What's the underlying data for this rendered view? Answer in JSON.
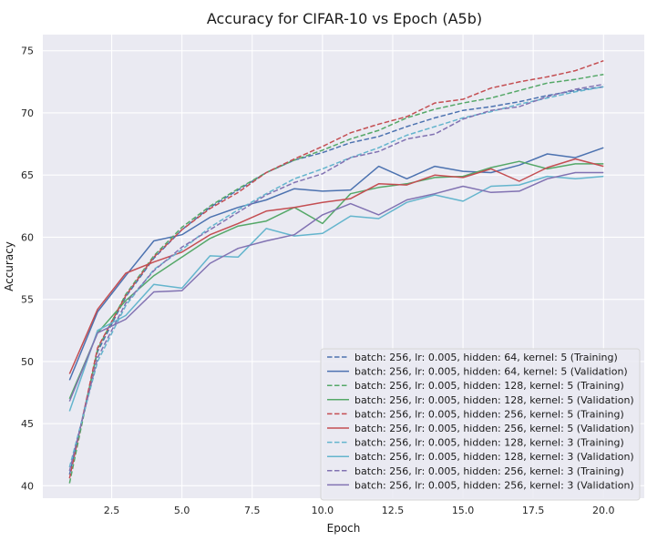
{
  "chart_data": {
    "type": "line",
    "title": "Accuracy for CIFAR-10 vs Epoch (A5b)",
    "xlabel": "Epoch",
    "ylabel": "Accuracy",
    "xlim": [
      0.05,
      21.45
    ],
    "ylim": [
      39.0,
      76.3
    ],
    "xticks": [
      2.5,
      5.0,
      7.5,
      10.0,
      12.5,
      15.0,
      17.5,
      20.0
    ],
    "xtick_labels": [
      "2.5",
      "5.0",
      "7.5",
      "10.0",
      "12.5",
      "15.0",
      "17.5",
      "20.0"
    ],
    "yticks": [
      40,
      45,
      50,
      55,
      60,
      65,
      70,
      75
    ],
    "ytick_labels": [
      "40",
      "45",
      "50",
      "55",
      "60",
      "65",
      "70",
      "75"
    ],
    "grid": true,
    "legend_position": "lower-right",
    "background": "#eaeaf2",
    "x": [
      1,
      2,
      3,
      4,
      5,
      6,
      7,
      8,
      9,
      10,
      11,
      12,
      13,
      14,
      15,
      16,
      17,
      18,
      19,
      20
    ],
    "series": [
      {
        "name": "batch: 256, lr: 0.005, hidden: 64, kernel: 5 (Training)",
        "color": "#4c72b0",
        "style": "dashed",
        "values": [
          40.9,
          50.8,
          55.2,
          58.3,
          60.6,
          62.4,
          63.8,
          65.2,
          66.2,
          66.8,
          67.6,
          68.1,
          68.9,
          69.6,
          70.2,
          70.5,
          70.9,
          71.4,
          71.8,
          72.1
        ]
      },
      {
        "name": "batch: 256, lr: 0.005, hidden: 64, kernel: 5 (Validation)",
        "color": "#4c72b0",
        "style": "solid",
        "values": [
          48.5,
          54.0,
          56.9,
          59.7,
          60.2,
          61.6,
          62.4,
          63.0,
          63.9,
          63.7,
          63.8,
          65.7,
          64.7,
          65.7,
          65.3,
          65.2,
          65.8,
          66.7,
          66.4,
          67.2
        ]
      },
      {
        "name": "batch: 256, lr: 0.005, hidden: 128, kernel: 5 (Training)",
        "color": "#55a868",
        "style": "dashed",
        "values": [
          40.2,
          51.0,
          55.4,
          58.5,
          60.8,
          62.5,
          63.9,
          65.2,
          66.2,
          67.0,
          67.9,
          68.6,
          69.6,
          70.3,
          70.8,
          71.2,
          71.8,
          72.4,
          72.7,
          73.1
        ]
      },
      {
        "name": "batch: 256, lr: 0.005, hidden: 128, kernel: 5 (Validation)",
        "color": "#55a868",
        "style": "solid",
        "values": [
          47.0,
          52.3,
          54.9,
          56.9,
          58.4,
          59.9,
          60.9,
          61.3,
          62.4,
          61.1,
          63.5,
          64.0,
          64.3,
          64.8,
          64.9,
          65.6,
          66.1,
          65.5,
          65.9,
          65.9
        ]
      },
      {
        "name": "batch: 256, lr: 0.005, hidden: 256, kernel: 5 (Training)",
        "color": "#c44e52",
        "style": "dashed",
        "values": [
          40.6,
          51.1,
          55.3,
          58.4,
          60.6,
          62.3,
          63.6,
          65.2,
          66.3,
          67.3,
          68.4,
          69.1,
          69.7,
          70.8,
          71.1,
          72.0,
          72.5,
          72.9,
          73.4,
          74.2
        ]
      },
      {
        "name": "batch: 256, lr: 0.005, hidden: 256, kernel: 5 (Validation)",
        "color": "#c44e52",
        "style": "solid",
        "values": [
          49.0,
          54.2,
          57.1,
          58.0,
          58.8,
          60.2,
          61.1,
          62.1,
          62.4,
          62.8,
          63.1,
          64.3,
          64.2,
          65.0,
          64.8,
          65.5,
          64.5,
          65.6,
          66.3,
          65.7
        ]
      },
      {
        "name": "batch: 256, lr: 0.005, hidden: 128, kernel: 3 (Training)",
        "color": "#64b5cd",
        "style": "dashed",
        "values": [
          41.5,
          50.0,
          54.5,
          57.4,
          59.0,
          60.8,
          62.2,
          63.5,
          64.7,
          65.5,
          66.4,
          67.2,
          68.2,
          68.9,
          69.6,
          70.1,
          70.7,
          71.2,
          71.7,
          72.1
        ]
      },
      {
        "name": "batch: 256, lr: 0.005, hidden: 128, kernel: 3 (Validation)",
        "color": "#64b5cd",
        "style": "solid",
        "values": [
          46.0,
          52.5,
          53.7,
          56.2,
          55.9,
          58.5,
          58.4,
          60.7,
          60.1,
          60.3,
          61.7,
          61.5,
          62.8,
          63.4,
          62.9,
          64.1,
          64.2,
          64.9,
          64.7,
          64.9
        ]
      },
      {
        "name": "batch: 256, lr: 0.005, hidden: 256, kernel: 3 (Training)",
        "color": "#8172b2",
        "style": "dashed",
        "values": [
          41.2,
          50.3,
          54.7,
          57.3,
          59.2,
          60.6,
          62.0,
          63.4,
          64.4,
          65.1,
          66.4,
          66.9,
          67.9,
          68.3,
          69.5,
          70.2,
          70.5,
          71.3,
          71.9,
          72.3
        ]
      },
      {
        "name": "batch: 256, lr: 0.005, hidden: 256, kernel: 3 (Validation)",
        "color": "#8172b2",
        "style": "solid",
        "values": [
          46.8,
          52.3,
          53.4,
          55.6,
          55.7,
          57.9,
          59.1,
          59.7,
          60.2,
          61.8,
          62.7,
          61.8,
          63.0,
          63.5,
          64.1,
          63.6,
          63.7,
          64.7,
          65.2,
          65.2
        ]
      }
    ]
  }
}
